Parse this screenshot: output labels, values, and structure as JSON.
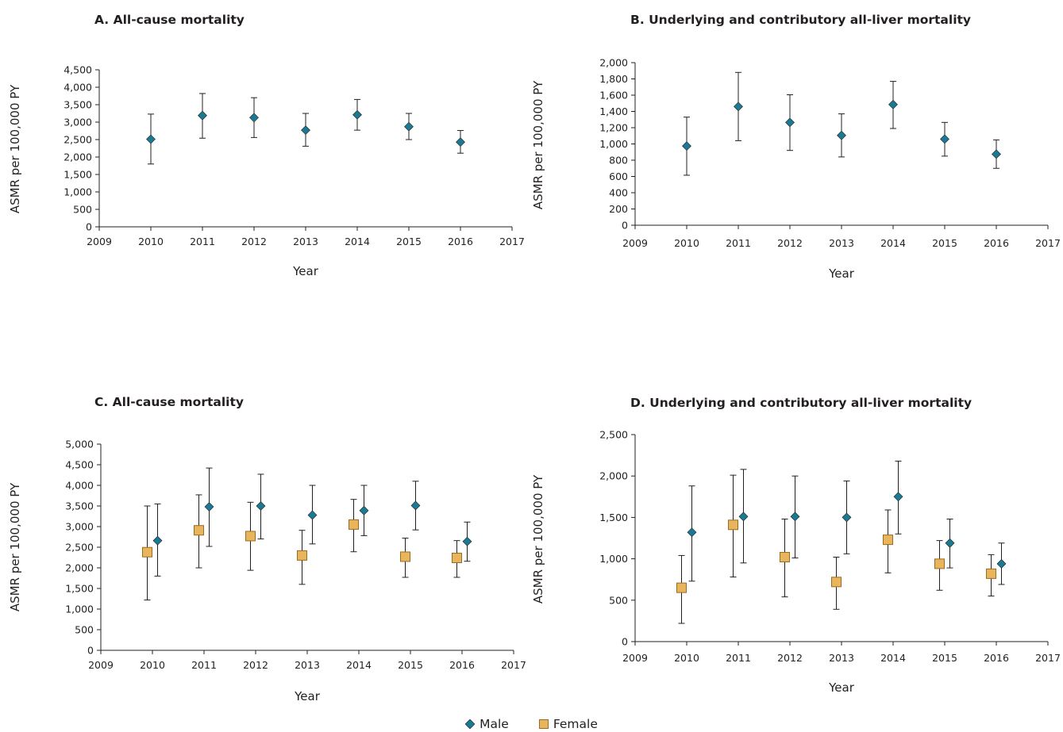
{
  "colors": {
    "male": "#1b7a93",
    "female": "#e8b55c",
    "female_stroke": "#9b6b1f",
    "ink": "#231f20"
  },
  "legend": [
    {
      "key": "male",
      "label": "Male",
      "shape": "diamond"
    },
    {
      "key": "female",
      "label": "Female",
      "shape": "square"
    }
  ],
  "chart_data": [
    {
      "type": "scatter",
      "title": "A. All-cause mortality",
      "xlabel": "Year",
      "ylabel": "ASMR per 100,000 PY",
      "xlim": [
        2009,
        2017
      ],
      "xticks": [
        "2009",
        "2010",
        "2011",
        "2012",
        "2013",
        "2014",
        "2015",
        "2016",
        "2017"
      ],
      "ylim": [
        0,
        4500
      ],
      "yticks": [
        "0",
        "500",
        "1,000",
        "1,500",
        "2,000",
        "2,500",
        "3,000",
        "3,500",
        "4,000",
        "4,500"
      ],
      "series": [
        {
          "name": "Male",
          "points": [
            {
              "x": 2010,
              "y": 2510,
              "lo": 1800,
              "hi": 3230
            },
            {
              "x": 2011,
              "y": 3190,
              "lo": 2540,
              "hi": 3820
            },
            {
              "x": 2012,
              "y": 3130,
              "lo": 2560,
              "hi": 3700
            },
            {
              "x": 2013,
              "y": 2770,
              "lo": 2310,
              "hi": 3250
            },
            {
              "x": 2014,
              "y": 3210,
              "lo": 2770,
              "hi": 3650
            },
            {
              "x": 2015,
              "y": 2870,
              "lo": 2500,
              "hi": 3250
            },
            {
              "x": 2016,
              "y": 2430,
              "lo": 2110,
              "hi": 2760
            }
          ]
        }
      ]
    },
    {
      "type": "scatter",
      "title": "B. Underlying and contributory all-liver mortality",
      "xlabel": "Year",
      "ylabel": "ASMR per 100,000 PY",
      "xlim": [
        2009,
        2017
      ],
      "xticks": [
        "2009",
        "2010",
        "2011",
        "2012",
        "2013",
        "2014",
        "2015",
        "2016",
        "2017"
      ],
      "ylim": [
        0,
        2000
      ],
      "yticks": [
        "0",
        "200",
        "400",
        "600",
        "800",
        "1,000",
        "1,200",
        "1,400",
        "1,600",
        "1,800",
        "2,000"
      ],
      "series": [
        {
          "name": "Male",
          "points": [
            {
              "x": 2010,
              "y": 975,
              "lo": 615,
              "hi": 1330
            },
            {
              "x": 2011,
              "y": 1460,
              "lo": 1040,
              "hi": 1880
            },
            {
              "x": 2012,
              "y": 1265,
              "lo": 920,
              "hi": 1605
            },
            {
              "x": 2013,
              "y": 1105,
              "lo": 840,
              "hi": 1370
            },
            {
              "x": 2014,
              "y": 1485,
              "lo": 1190,
              "hi": 1770
            },
            {
              "x": 2015,
              "y": 1060,
              "lo": 850,
              "hi": 1265
            },
            {
              "x": 2016,
              "y": 875,
              "lo": 700,
              "hi": 1050
            }
          ]
        }
      ]
    },
    {
      "type": "scatter",
      "title": "C. All-cause mortality",
      "xlabel": "Year",
      "ylabel": "ASMR per 100,000 PY",
      "xlim": [
        2009,
        2017
      ],
      "xticks": [
        "2009",
        "2010",
        "2011",
        "2012",
        "2013",
        "2014",
        "2015",
        "2016",
        "2017"
      ],
      "ylim": [
        0,
        5000
      ],
      "yticks": [
        "0",
        "500",
        "1,000",
        "1,500",
        "2,000",
        "2,500",
        "3,000",
        "3,500",
        "4,000",
        "4,500",
        "5,000"
      ],
      "series": [
        {
          "name": "Male",
          "points": [
            {
              "x": 2010.1,
              "y": 2660,
              "lo": 1800,
              "hi": 3550
            },
            {
              "x": 2011.1,
              "y": 3480,
              "lo": 2520,
              "hi": 4420
            },
            {
              "x": 2012.1,
              "y": 3500,
              "lo": 2700,
              "hi": 4270
            },
            {
              "x": 2013.1,
              "y": 3280,
              "lo": 2580,
              "hi": 4000
            },
            {
              "x": 2014.1,
              "y": 3390,
              "lo": 2780,
              "hi": 4000
            },
            {
              "x": 2015.1,
              "y": 3510,
              "lo": 2920,
              "hi": 4100
            },
            {
              "x": 2016.1,
              "y": 2640,
              "lo": 2160,
              "hi": 3110
            }
          ]
        },
        {
          "name": "Female",
          "points": [
            {
              "x": 2009.9,
              "y": 2380,
              "lo": 1220,
              "hi": 3500
            },
            {
              "x": 2010.9,
              "y": 2910,
              "lo": 2000,
              "hi": 3770
            },
            {
              "x": 2011.9,
              "y": 2770,
              "lo": 1940,
              "hi": 3590
            },
            {
              "x": 2012.9,
              "y": 2300,
              "lo": 1600,
              "hi": 2910
            },
            {
              "x": 2013.9,
              "y": 3050,
              "lo": 2390,
              "hi": 3660
            },
            {
              "x": 2014.9,
              "y": 2270,
              "lo": 1770,
              "hi": 2720
            },
            {
              "x": 2015.9,
              "y": 2240,
              "lo": 1770,
              "hi": 2660
            }
          ]
        }
      ]
    },
    {
      "type": "scatter",
      "title": "D. Underlying and contributory all-liver mortality",
      "xlabel": "Year",
      "ylabel": "ASMR per 100,000 PY",
      "xlim": [
        2009,
        2017
      ],
      "xticks": [
        "2009",
        "2010",
        "2011",
        "2012",
        "2013",
        "2014",
        "2015",
        "2016",
        "2017"
      ],
      "ylim": [
        0,
        2500
      ],
      "yticks": [
        "0",
        "500",
        "1,000",
        "1,500",
        "2,000",
        "2,500"
      ],
      "series": [
        {
          "name": "Male",
          "points": [
            {
              "x": 2010.1,
              "y": 1320,
              "lo": 730,
              "hi": 1880
            },
            {
              "x": 2011.1,
              "y": 1510,
              "lo": 950,
              "hi": 2080
            },
            {
              "x": 2012.1,
              "y": 1510,
              "lo": 1010,
              "hi": 2000
            },
            {
              "x": 2013.1,
              "y": 1500,
              "lo": 1060,
              "hi": 1940
            },
            {
              "x": 2014.1,
              "y": 1750,
              "lo": 1300,
              "hi": 2180
            },
            {
              "x": 2015.1,
              "y": 1190,
              "lo": 890,
              "hi": 1480
            },
            {
              "x": 2016.1,
              "y": 940,
              "lo": 690,
              "hi": 1190
            }
          ]
        },
        {
          "name": "Female",
          "points": [
            {
              "x": 2009.9,
              "y": 650,
              "lo": 220,
              "hi": 1040
            },
            {
              "x": 2010.9,
              "y": 1410,
              "lo": 780,
              "hi": 2010
            },
            {
              "x": 2011.9,
              "y": 1020,
              "lo": 540,
              "hi": 1480
            },
            {
              "x": 2012.9,
              "y": 720,
              "lo": 390,
              "hi": 1020
            },
            {
              "x": 2013.9,
              "y": 1230,
              "lo": 830,
              "hi": 1590
            },
            {
              "x": 2014.9,
              "y": 940,
              "lo": 620,
              "hi": 1220
            },
            {
              "x": 2015.9,
              "y": 820,
              "lo": 550,
              "hi": 1050
            }
          ]
        }
      ]
    }
  ]
}
